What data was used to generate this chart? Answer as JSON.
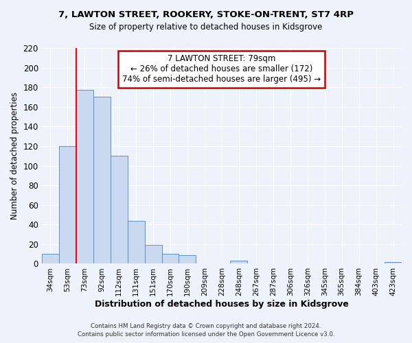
{
  "title": "7, LAWTON STREET, ROOKERY, STOKE-ON-TRENT, ST7 4RP",
  "subtitle": "Size of property relative to detached houses in Kidsgrove",
  "xlabel": "Distribution of detached houses by size in Kidsgrove",
  "ylabel": "Number of detached properties",
  "bar_labels": [
    "34sqm",
    "53sqm",
    "73sqm",
    "92sqm",
    "112sqm",
    "131sqm",
    "151sqm",
    "170sqm",
    "190sqm",
    "209sqm",
    "228sqm",
    "248sqm",
    "267sqm",
    "287sqm",
    "306sqm",
    "326sqm",
    "345sqm",
    "365sqm",
    "384sqm",
    "403sqm",
    "423sqm"
  ],
  "bar_values": [
    10,
    120,
    177,
    170,
    110,
    44,
    19,
    10,
    9,
    0,
    0,
    3,
    0,
    0,
    0,
    0,
    0,
    0,
    0,
    0,
    2
  ],
  "bar_color": "#c9d9f0",
  "bar_edge_color": "#5a8fd4",
  "red_line_index": 2,
  "annotation_title": "7 LAWTON STREET: 79sqm",
  "annotation_line1": "← 26% of detached houses are smaller (172)",
  "annotation_line2": "74% of semi-detached houses are larger (495) →",
  "annotation_box_color": "#ffffff",
  "annotation_box_edge": "#cc0000",
  "ylim": [
    0,
    220
  ],
  "yticks": [
    0,
    20,
    40,
    60,
    80,
    100,
    120,
    140,
    160,
    180,
    200,
    220
  ],
  "footer_line1": "Contains HM Land Registry data © Crown copyright and database right 2024.",
  "footer_line2": "Contains public sector information licensed under the Open Government Licence v3.0.",
  "bg_color": "#eef2fb",
  "grid_color": "#ffffff"
}
